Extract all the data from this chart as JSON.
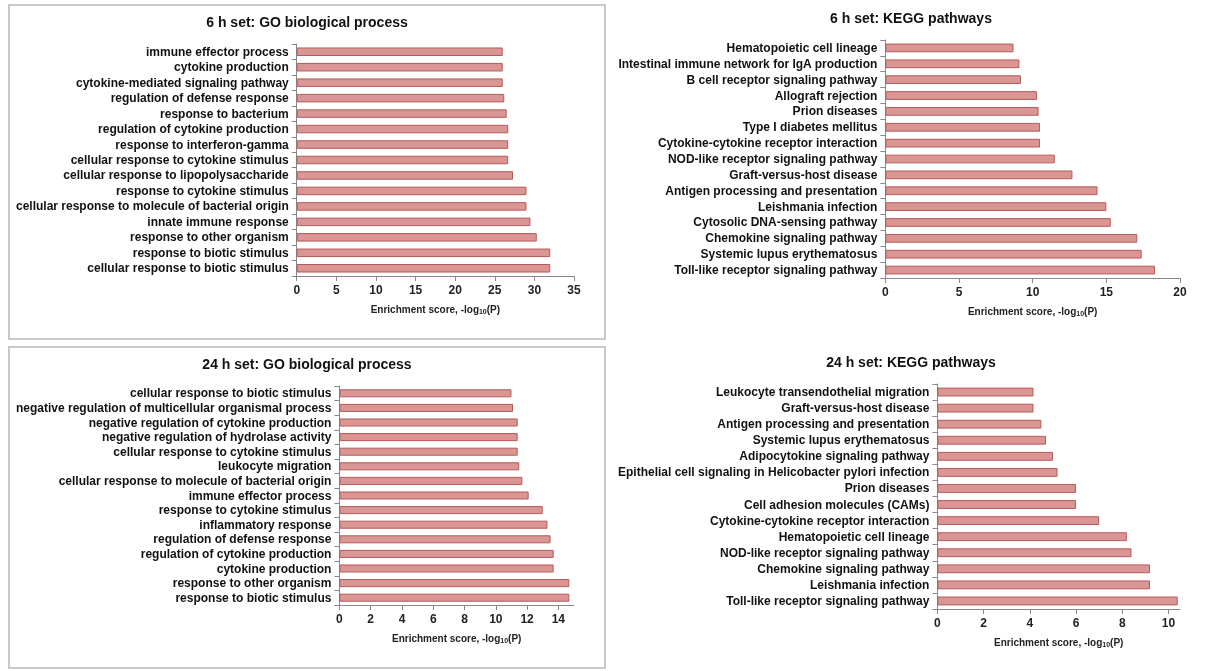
{
  "chart_data": [
    {
      "type": "bar",
      "orientation": "horizontal",
      "title": "6 h set: GO biological process",
      "xlabel": "Enrichment score, -log$_{10}$(P)",
      "color": "#d99694",
      "grid": false,
      "categories": [
        "immune effector process",
        "cytokine production",
        "cytokine-mediated signaling pathway",
        "regulation of defense response",
        "response to bacterium",
        "regulation of cytokine production",
        "response to interferon-gamma",
        "cellular response to cytokine stimulus",
        "cellular response to lipopolysaccharide",
        "response to cytokine stimulus",
        "cellular response to molecule of bacterial origin",
        "innate immune response",
        "response to other organism",
        "response to biotic stimulus",
        "cellular response to biotic stimulus"
      ],
      "values": [
        26.0,
        26.0,
        26.0,
        26.2,
        26.5,
        26.7,
        26.7,
        26.7,
        27.3,
        29.0,
        29.0,
        29.5,
        30.3,
        32.0,
        32.0
      ],
      "xlim": [
        0,
        35
      ],
      "xticks": [
        0,
        5,
        10,
        15,
        20,
        25,
        30,
        35
      ]
    },
    {
      "type": "bar",
      "orientation": "horizontal",
      "title": "6 h set: KEGG pathways",
      "xlabel": "Enrichment score, -log$_{10}$(P)",
      "color": "#d99694",
      "grid": false,
      "categories": [
        "Hematopoietic cell lineage",
        "Intestinal immune network for IgA production",
        "B cell receptor signaling pathway",
        "Allograft rejection",
        "Prion diseases",
        "Type I diabetes mellitus",
        "Cytokine-cytokine receptor interaction",
        "NOD-like receptor signaling pathway",
        "Graft-versus-host disease",
        "Antigen processing and presentation",
        "Leishmania infection",
        "Cytosolic DNA-sensing pathway",
        "Chemokine signaling pathway",
        "Systemic lupus erythematosus",
        "Toll-like receptor signaling pathway"
      ],
      "values": [
        8.7,
        9.1,
        9.2,
        10.3,
        10.4,
        10.5,
        10.5,
        11.5,
        12.7,
        14.4,
        15.0,
        15.3,
        17.1,
        17.4,
        18.3
      ],
      "xlim": [
        0,
        20
      ],
      "xticks": [
        0,
        5,
        10,
        15,
        20
      ]
    },
    {
      "type": "bar",
      "orientation": "horizontal",
      "title": "24 h set: GO biological process",
      "xlabel": "Enrichment score, -log$_{10}$(P)",
      "color": "#d99694",
      "grid": false,
      "categories": [
        "cellular response to biotic stimulus",
        "negative regulation of multicellular organismal process",
        "negative regulation of cytokine production",
        "negative regulation of hydrolase activity",
        "cellular response to cytokine stimulus",
        "leukocyte migration",
        "cellular response to molecule of bacterial origin",
        "immune effector process",
        "response to cytokine stimulus",
        "inflammatory response",
        "regulation of defense response",
        "regulation of cytokine production",
        "cytokine production",
        "response to other organism",
        "response to biotic stimulus"
      ],
      "values": [
        11.0,
        11.1,
        11.4,
        11.4,
        11.4,
        11.5,
        11.7,
        12.1,
        13.0,
        13.3,
        13.5,
        13.7,
        13.7,
        14.7,
        14.7
      ],
      "xlim": [
        0,
        15
      ],
      "xticks": [
        0,
        2,
        4,
        6,
        8,
        10,
        12,
        14
      ]
    },
    {
      "type": "bar",
      "orientation": "horizontal",
      "title": "24 h set: KEGG pathways",
      "xlabel": "Enrichment score, -log$_{10}$(P)",
      "color": "#d99694",
      "grid": false,
      "categories": [
        "Leukocyte transendothelial migration",
        "Graft-versus-host disease",
        "Antigen processing and presentation",
        "Systemic lupus erythematosus",
        "Adipocytokine signaling pathway",
        "Epithelial cell signaling in Helicobacter pylori infection",
        "Prion diseases",
        "Cell adhesion molecules (CAMs)",
        "Cytokine-cytokine receptor interaction",
        "Hematopoietic cell lineage",
        "NOD-like receptor signaling pathway",
        "Chemokine signaling pathway",
        "Leishmania infection",
        "Toll-like receptor signaling pathway"
      ],
      "values": [
        4.16,
        4.16,
        4.5,
        4.7,
        5.0,
        5.2,
        6.0,
        6.0,
        7.0,
        8.2,
        8.4,
        9.2,
        9.2,
        10.4
      ],
      "xlim": [
        0,
        10.5
      ],
      "xticks": [
        0,
        2,
        4,
        6,
        8,
        10
      ]
    }
  ]
}
